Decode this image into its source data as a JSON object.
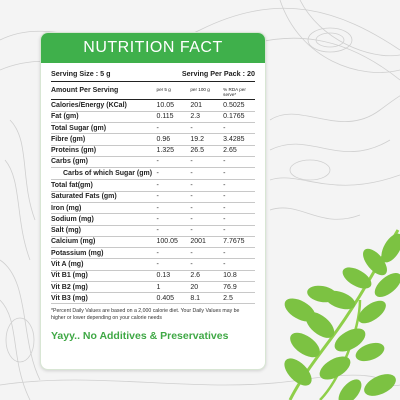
{
  "header": {
    "title": "NUTRITION FACT"
  },
  "serving": {
    "size_label": "Serving Size : 5 g",
    "per_pack_label": "Serving Per Pack : 20"
  },
  "table": {
    "headers": [
      "Amount Per Serving",
      "per 5 g",
      "per 100 g",
      "% RDA per serve*"
    ],
    "rows": [
      {
        "label": "Calories/Energy (KCal)",
        "v1": "10.05",
        "v2": "201",
        "v3": "0.5025",
        "sub": false
      },
      {
        "label": "Fat (gm)",
        "v1": "0.115",
        "v2": "2.3",
        "v3": "0.1765",
        "sub": false
      },
      {
        "label": "Total Sugar (gm)",
        "v1": "-",
        "v2": "-",
        "v3": "-",
        "sub": false
      },
      {
        "label": "Fibre (gm)",
        "v1": "0.96",
        "v2": "19.2",
        "v3": "3.4285",
        "sub": false
      },
      {
        "label": "Proteins (gm)",
        "v1": "1.325",
        "v2": "26.5",
        "v3": "2.65",
        "sub": false
      },
      {
        "label": "Carbs (gm)",
        "v1": "-",
        "v2": "-",
        "v3": "-",
        "sub": false
      },
      {
        "label": "Carbs of which Sugar (gm)",
        "v1": "-",
        "v2": "-",
        "v3": "-",
        "sub": true
      },
      {
        "label": "Total fat(gm)",
        "v1": "-",
        "v2": "-",
        "v3": "-",
        "sub": false
      },
      {
        "label": "Saturated Fats (gm)",
        "v1": "-",
        "v2": "-",
        "v3": "-",
        "sub": false
      },
      {
        "label": "Iron (mg)",
        "v1": "-",
        "v2": "-",
        "v3": "-",
        "sub": false
      },
      {
        "label": "Sodium (mg)",
        "v1": "-",
        "v2": "-",
        "v3": "-",
        "sub": false
      },
      {
        "label": "Salt (mg)",
        "v1": "-",
        "v2": "-",
        "v3": "-",
        "sub": false
      },
      {
        "label": "Calcium (mg)",
        "v1": "100.05",
        "v2": "2001",
        "v3": "7.7675",
        "sub": false
      },
      {
        "label": "Potassium (mg)",
        "v1": "-",
        "v2": "-",
        "v3": "-",
        "sub": false
      },
      {
        "label": "Vit A (mg)",
        "v1": "-",
        "v2": "-",
        "v3": "-",
        "sub": false
      },
      {
        "label": "Vit B1 (mg)",
        "v1": "0.13",
        "v2": "2.6",
        "v3": "10.8",
        "sub": false
      },
      {
        "label": "Vit B2 (mg)",
        "v1": "1",
        "v2": "20",
        "v3": "76.9",
        "sub": false
      },
      {
        "label": "Vit B3 (mg)",
        "v1": "0.405",
        "v2": "8.1",
        "v3": "2.5",
        "sub": false
      }
    ]
  },
  "footnote": "*Percent Daily Values are based on a 2,000 calorie diet. Your Daily Values may be higher or lower depending on your calorie needs",
  "slogan": "Yayy.. No Additives & Preservatives",
  "colors": {
    "brand_green": "#3fb04b",
    "slogan_green": "#3fa845",
    "leaf_green": "#7cc242"
  }
}
